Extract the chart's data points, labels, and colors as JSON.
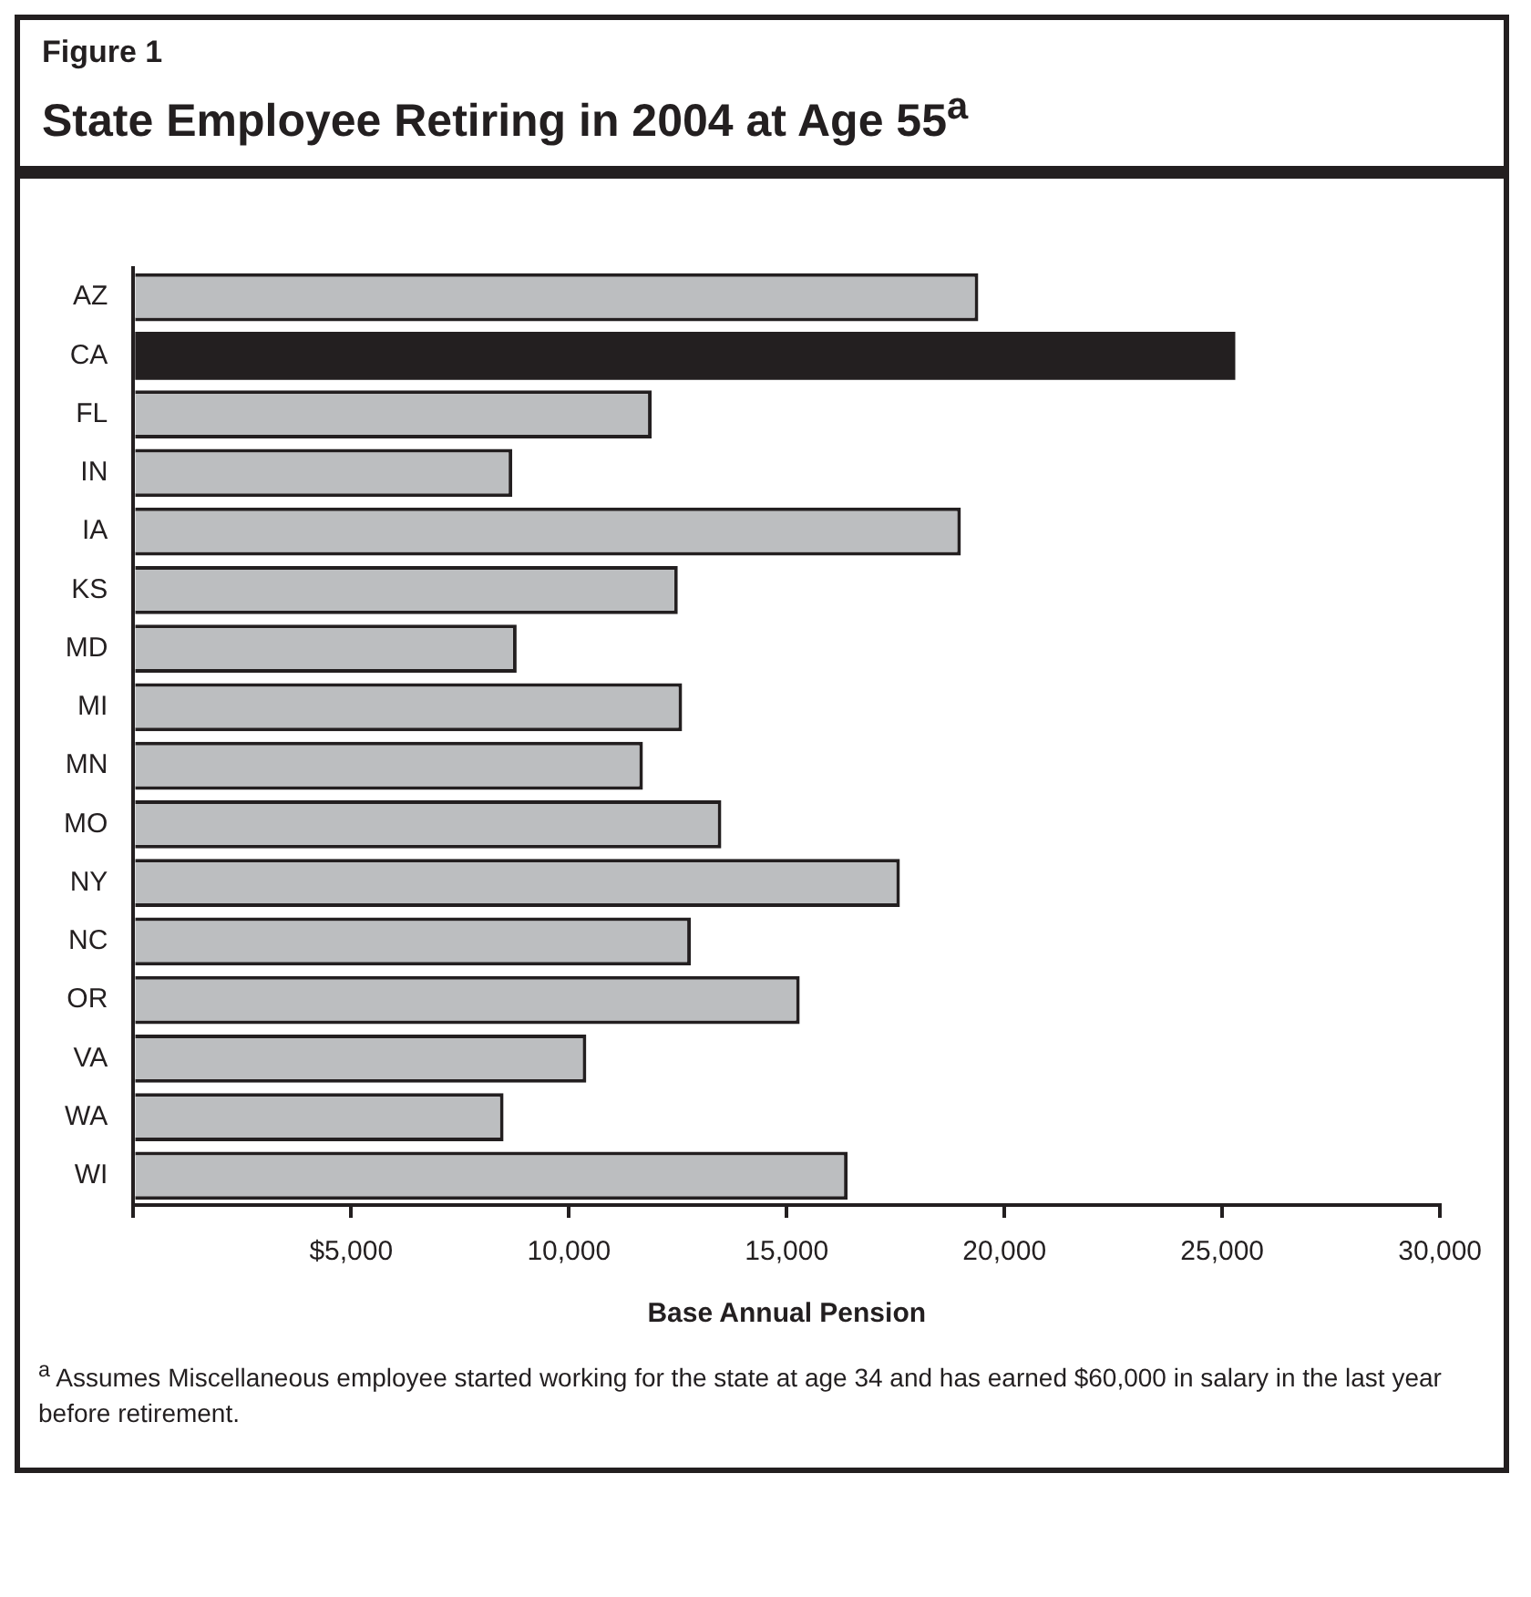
{
  "chart_data": {
    "type": "bar",
    "orientation": "horizontal",
    "subtitle": "Figure 1",
    "title": "State Employee Retiring in 2004 at Age 55$^{a}$",
    "categories": [
      "AZ",
      "CA",
      "FL",
      "IN",
      "IA",
      "KS",
      "MD",
      "MI",
      "MN",
      "MO",
      "NY",
      "NC",
      "OR",
      "VA",
      "WA",
      "WI"
    ],
    "values": [
      19400,
      25300,
      11900,
      8700,
      19000,
      12500,
      8800,
      12600,
      11700,
      13500,
      17600,
      12800,
      15300,
      10400,
      8500,
      16400
    ],
    "colors": [
      "#bcbec0",
      "#231f20",
      "#bcbec0",
      "#bcbec0",
      "#bcbec0",
      "#bcbec0",
      "#bcbec0",
      "#bcbec0",
      "#bcbec0",
      "#bcbec0",
      "#bcbec0",
      "#bcbec0",
      "#bcbec0",
      "#bcbec0",
      "#bcbec0",
      "#bcbec0"
    ],
    "xlim": [
      0,
      30000
    ],
    "xticks": [
      {
        "value": 0,
        "label": null
      },
      {
        "value": 5000,
        "label": "$5,000"
      },
      {
        "value": 10000,
        "label": "10,000"
      },
      {
        "value": 15000,
        "label": "15,000"
      },
      {
        "value": 20000,
        "label": "20,000"
      },
      {
        "value": 25000,
        "label": "25,000"
      },
      {
        "value": 30000,
        "label": "30,000"
      }
    ],
    "xlabel": "Base Annual Pension",
    "grid": false,
    "legend": false,
    "annotations": [
      "$^{a}$ Assumes Miscellaneous employee started working for the state at age 34 and has earned $60,000 in salary in the last year before retirement."
    ]
  }
}
